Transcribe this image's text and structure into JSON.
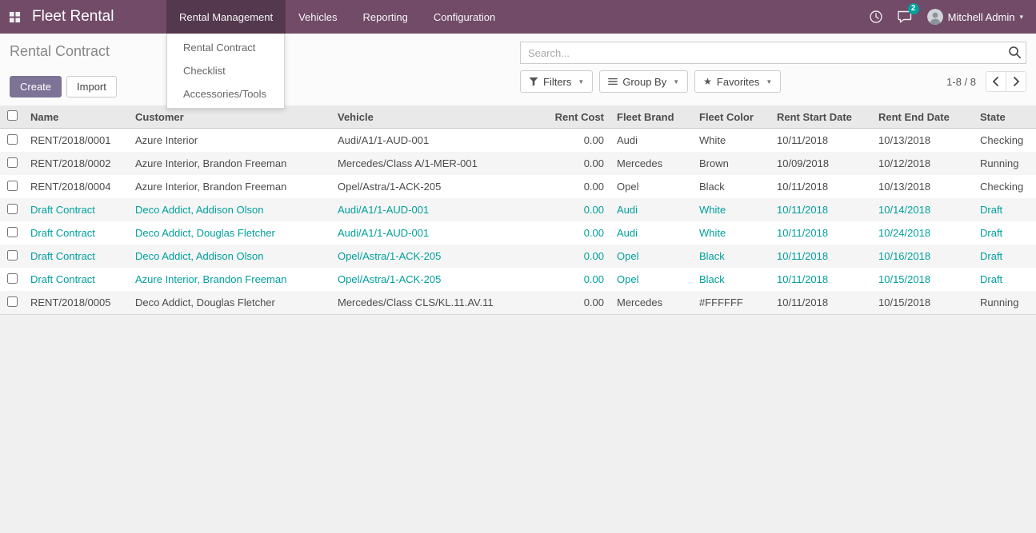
{
  "colors": {
    "topbar_bg": "#714B67",
    "primary_button_bg": "#7C7396",
    "draft_text": "#00A09D",
    "badge_bg": "#00A09D"
  },
  "topbar": {
    "app_title": "Fleet Rental",
    "menus": [
      {
        "label": "Rental Management",
        "active": true
      },
      {
        "label": "Vehicles",
        "active": false
      },
      {
        "label": "Reporting",
        "active": false
      },
      {
        "label": "Configuration",
        "active": false
      }
    ],
    "message_count": "2",
    "user_name": "Mitchell Admin"
  },
  "dropdown": {
    "items": [
      "Rental Contract",
      "Checklist",
      "Accessories/Tools"
    ]
  },
  "control_panel": {
    "title": "Rental Contract",
    "create_label": "Create",
    "import_label": "Import",
    "search_placeholder": "Search...",
    "filters_label": "Filters",
    "group_by_label": "Group By",
    "favorites_label": "Favorites",
    "pager_text": "1-8 / 8"
  },
  "table": {
    "columns": [
      "Name",
      "Customer",
      "Vehicle",
      "Rent Cost",
      "Fleet Brand",
      "Fleet Color",
      "Rent Start Date",
      "Rent End Date",
      "State"
    ],
    "rows": [
      {
        "name": "RENT/2018/0001",
        "customer": "Azure Interior",
        "vehicle": "Audi/A1/1-AUD-001",
        "rent_cost": "0.00",
        "fleet_brand": "Audi",
        "fleet_color": "White",
        "rent_start_date": "10/11/2018",
        "rent_end_date": "10/13/2018",
        "state": "Checking",
        "draft": false
      },
      {
        "name": "RENT/2018/0002",
        "customer": "Azure Interior, Brandon Freeman",
        "vehicle": "Mercedes/Class A/1-MER-001",
        "rent_cost": "0.00",
        "fleet_brand": "Mercedes",
        "fleet_color": "Brown",
        "rent_start_date": "10/09/2018",
        "rent_end_date": "10/12/2018",
        "state": "Running",
        "draft": false
      },
      {
        "name": "RENT/2018/0004",
        "customer": "Azure Interior, Brandon Freeman",
        "vehicle": "Opel/Astra/1-ACK-205",
        "rent_cost": "0.00",
        "fleet_brand": "Opel",
        "fleet_color": "Black",
        "rent_start_date": "10/11/2018",
        "rent_end_date": "10/13/2018",
        "state": "Checking",
        "draft": false
      },
      {
        "name": "Draft Contract",
        "customer": "Deco Addict, Addison Olson",
        "vehicle": "Audi/A1/1-AUD-001",
        "rent_cost": "0.00",
        "fleet_brand": "Audi",
        "fleet_color": "White",
        "rent_start_date": "10/11/2018",
        "rent_end_date": "10/14/2018",
        "state": "Draft",
        "draft": true
      },
      {
        "name": "Draft Contract",
        "customer": "Deco Addict, Douglas Fletcher",
        "vehicle": "Audi/A1/1-AUD-001",
        "rent_cost": "0.00",
        "fleet_brand": "Audi",
        "fleet_color": "White",
        "rent_start_date": "10/11/2018",
        "rent_end_date": "10/24/2018",
        "state": "Draft",
        "draft": true
      },
      {
        "name": "Draft Contract",
        "customer": "Deco Addict, Addison Olson",
        "vehicle": "Opel/Astra/1-ACK-205",
        "rent_cost": "0.00",
        "fleet_brand": "Opel",
        "fleet_color": "Black",
        "rent_start_date": "10/11/2018",
        "rent_end_date": "10/16/2018",
        "state": "Draft",
        "draft": true
      },
      {
        "name": "Draft Contract",
        "customer": "Azure Interior, Brandon Freeman",
        "vehicle": "Opel/Astra/1-ACK-205",
        "rent_cost": "0.00",
        "fleet_brand": "Opel",
        "fleet_color": "Black",
        "rent_start_date": "10/11/2018",
        "rent_end_date": "10/15/2018",
        "state": "Draft",
        "draft": true
      },
      {
        "name": "RENT/2018/0005",
        "customer": "Deco Addict, Douglas Fletcher",
        "vehicle": "Mercedes/Class CLS/KL.11.AV.11",
        "rent_cost": "0.00",
        "fleet_brand": "Mercedes",
        "fleet_color": "#FFFFFF",
        "rent_start_date": "10/11/2018",
        "rent_end_date": "10/15/2018",
        "state": "Running",
        "draft": false
      }
    ]
  }
}
